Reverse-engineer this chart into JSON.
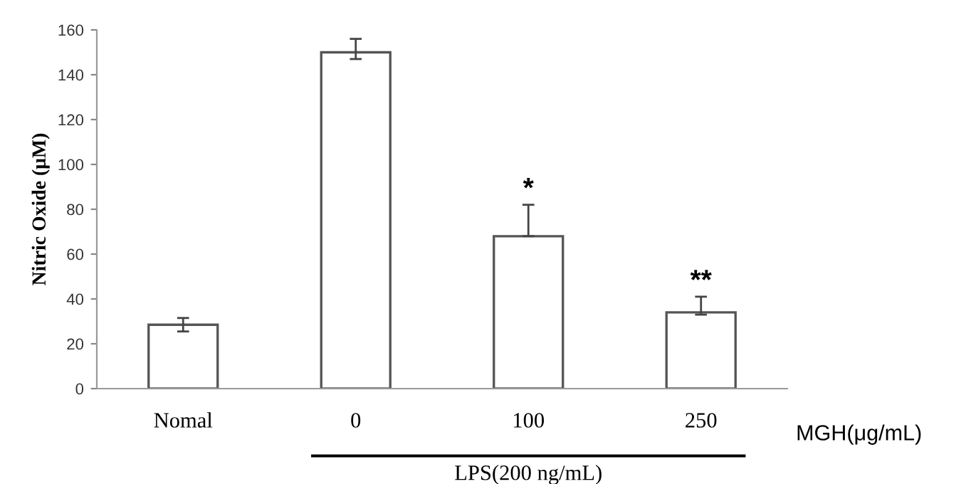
{
  "chart_data": {
    "type": "bar",
    "categories": [
      "Nomal",
      "0",
      "100",
      "250"
    ],
    "values": [
      28.5,
      150,
      68,
      34
    ],
    "errors": [
      3,
      [
        147,
        156
      ],
      [
        68,
        82
      ],
      [
        33,
        41
      ]
    ],
    "color": "#ffffff",
    "ylabel": "Nitric Oxide (μM)",
    "xlabel": "MGH(μg/mL)",
    "ylim": [
      0,
      160
    ],
    "yticks": [
      0,
      20,
      40,
      60,
      80,
      100,
      120,
      140,
      160
    ],
    "annotations": [
      {
        "text": "*",
        "x": "100",
        "y": 82
      },
      {
        "text": "**",
        "x": "250",
        "y": 41
      },
      "LPS(200 ng/mL)"
    ],
    "grid": false,
    "legend": false
  }
}
